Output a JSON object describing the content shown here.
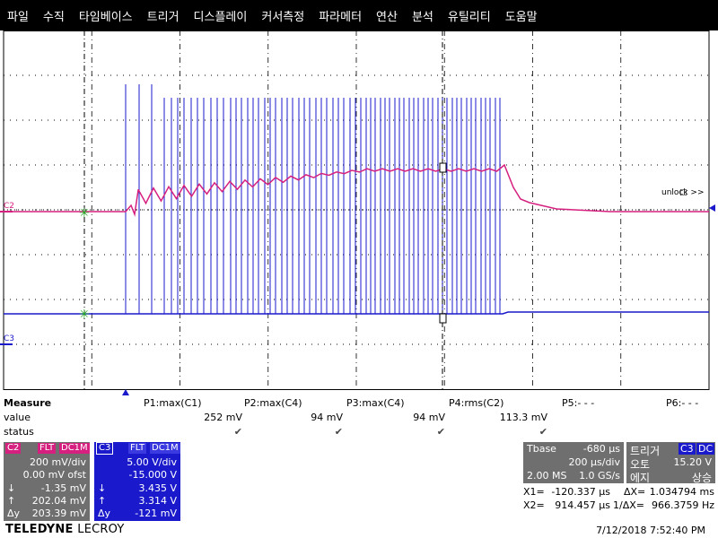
{
  "menu": [
    "파일",
    "수직",
    "타임베이스",
    "트리거",
    "디스플레이",
    "커서측정",
    "파라메터",
    "연산",
    "분석",
    "유틸리티",
    "도움말"
  ],
  "colors": {
    "c2": "#d6207f",
    "c3": "#1a1acc",
    "panel_gray": "#6f6f6f",
    "grid": "#000000"
  },
  "grid_labels": {
    "c2": "C2",
    "c3": "C3",
    "unlock": "unlock >>"
  },
  "measure": {
    "title": "Measure",
    "row_value_label": "value",
    "row_status_label": "status",
    "params": [
      {
        "name": "P1:max(C1)",
        "value": "252 mV",
        "status": "✔"
      },
      {
        "name": "P2:max(C4)",
        "value": "94 mV",
        "status": "✔"
      },
      {
        "name": "P3:max(C4)",
        "value": "94 mV",
        "status": "✔"
      },
      {
        "name": "P4:rms(C2)",
        "value": "113.3 mV",
        "status": "✔"
      },
      {
        "name": "P5:- - -",
        "value": "",
        "status": ""
      },
      {
        "name": "P6:- - -",
        "value": "",
        "status": ""
      }
    ]
  },
  "ch2": {
    "label": "C2",
    "tag1": "FLT",
    "tag2": "DC1M",
    "scale": "200 mV/div",
    "offset": "0.00 mV ofst",
    "down": "-1.35 mV",
    "up": "202.04 mV",
    "delta": "203.39 mV",
    "sym_down": "↓",
    "sym_up": "↑",
    "sym_delta": "Δy"
  },
  "ch3": {
    "label": "C3",
    "tag1": "FLT",
    "tag2": "DC1M",
    "scale": "5.00 V/div",
    "offset": "-15.000 V",
    "down": "3.435 V",
    "up": "3.314 V",
    "delta": "-121 mV",
    "sym_down": "↓",
    "sym_up": "↑",
    "sym_delta": "Δy"
  },
  "timebase": {
    "label": "Tbase",
    "delay": "-680 µs",
    "per_div": "200 µs/div",
    "samples": "2.00 MS",
    "rate": "1.0 GS/s"
  },
  "trigger": {
    "label": "트리거",
    "channel": "C3",
    "coupling": "DC",
    "mode_label": "오토",
    "level": "15.20 V",
    "type_label": "에지",
    "slope": "상승"
  },
  "cursors": {
    "x1_label": "X1=",
    "x1": "-120.337 µs",
    "dx_label": "ΔX=",
    "dx": "1.034794 ms",
    "x2_label": "X2=",
    "x2": "914.457 µs",
    "inv_label": "1/ΔX=",
    "inv": "966.3759 Hz"
  },
  "brand": {
    "bold": "TELEDYNE",
    "light": "LECROY"
  },
  "datetime": "7/12/2018 7:52:40 PM"
}
